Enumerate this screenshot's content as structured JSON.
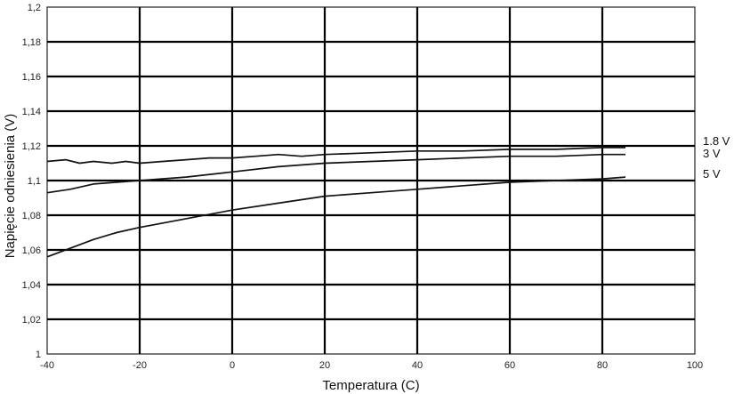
{
  "chart_data": {
    "type": "line",
    "xlabel": "Temperatura (C)",
    "ylabel": "Napięcie odniesienia (V)",
    "xlim": [
      -40,
      100
    ],
    "ylim": [
      1,
      1.2
    ],
    "xticks": [
      -40,
      -20,
      0,
      20,
      40,
      60,
      80,
      100
    ],
    "yticks": [
      1,
      1.02,
      1.04,
      1.06,
      1.08,
      1.1,
      1.12,
      1.14,
      1.16,
      1.18,
      1.2
    ],
    "xtick_labels": [
      "-40",
      "-20",
      "0",
      "20",
      "40",
      "60",
      "80",
      "100"
    ],
    "ytick_labels": [
      "1",
      "1,02",
      "1,04",
      "1,06",
      "1,08",
      "1,1",
      "1,12",
      "1,14",
      "1,16",
      "1,18",
      "1,2"
    ],
    "grid": true,
    "series": [
      {
        "name": "1.8 V",
        "x": [
          -40,
          -36,
          -33,
          -30,
          -26,
          -23,
          -20,
          -15,
          -10,
          -5,
          0,
          5,
          10,
          15,
          20,
          30,
          40,
          50,
          60,
          70,
          80,
          85
        ],
        "y": [
          1.111,
          1.112,
          1.11,
          1.111,
          1.11,
          1.111,
          1.11,
          1.111,
          1.112,
          1.113,
          1.113,
          1.114,
          1.115,
          1.114,
          1.115,
          1.116,
          1.117,
          1.117,
          1.118,
          1.118,
          1.119,
          1.119
        ]
      },
      {
        "name": "3 V",
        "x": [
          -40,
          -35,
          -30,
          -25,
          -20,
          -10,
          0,
          10,
          20,
          30,
          40,
          50,
          60,
          70,
          80,
          85
        ],
        "y": [
          1.093,
          1.095,
          1.098,
          1.099,
          1.1,
          1.102,
          1.105,
          1.108,
          1.11,
          1.111,
          1.112,
          1.113,
          1.114,
          1.114,
          1.115,
          1.115
        ]
      },
      {
        "name": "5 V",
        "x": [
          -40,
          -35,
          -30,
          -25,
          -20,
          -10,
          0,
          10,
          20,
          30,
          40,
          50,
          60,
          70,
          80,
          85
        ],
        "y": [
          1.056,
          1.061,
          1.066,
          1.07,
          1.073,
          1.078,
          1.083,
          1.087,
          1.091,
          1.093,
          1.095,
          1.097,
          1.099,
          1.1,
          1.101,
          1.102
        ]
      }
    ]
  }
}
